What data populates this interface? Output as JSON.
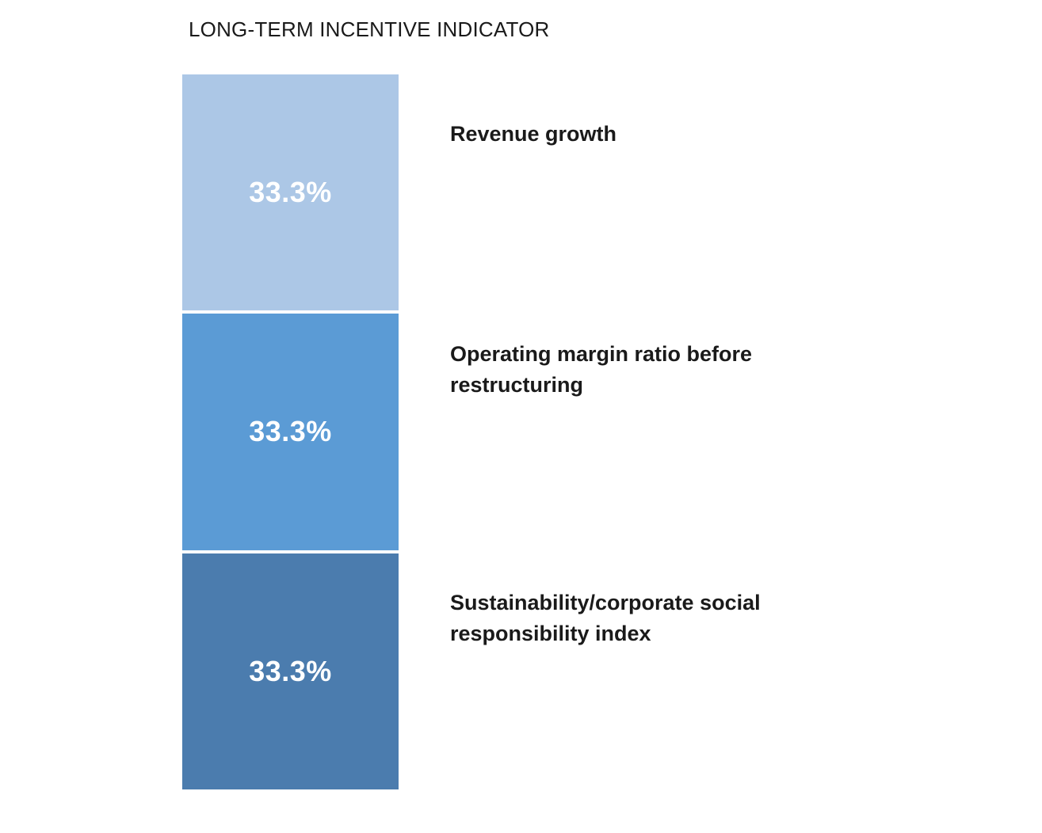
{
  "title": "LONG-TERM INCENTIVE INDICATOR",
  "chart_data": {
    "type": "bar",
    "subtype": "stacked-single-column",
    "title": "LONG-TERM INCENTIVE INDICATOR",
    "unit": "%",
    "total": 100,
    "orientation": "vertical",
    "grid": false,
    "axes_visible": false,
    "labels_position": "right",
    "value_label_color": "#FFFFFF",
    "background": "#FFFFFF",
    "segments": [
      {
        "label": "Revenue growth",
        "label_display": "Revenue growth",
        "value": 33.3,
        "value_label": "33.3%",
        "color": "#ACC7E6"
      },
      {
        "label": "Operating margin ratio before restructuring",
        "label_display": "Operating margin ratio before\nrestructuring",
        "value": 33.3,
        "value_label": "33.3%",
        "color": "#5B9BD5"
      },
      {
        "label": "Sustainability/corporate social responsibility index",
        "label_display": "Sustainability/corporate social\nresponsibility index",
        "value": 33.3,
        "value_label": "33.3%",
        "color": "#4B7CAE"
      }
    ]
  }
}
